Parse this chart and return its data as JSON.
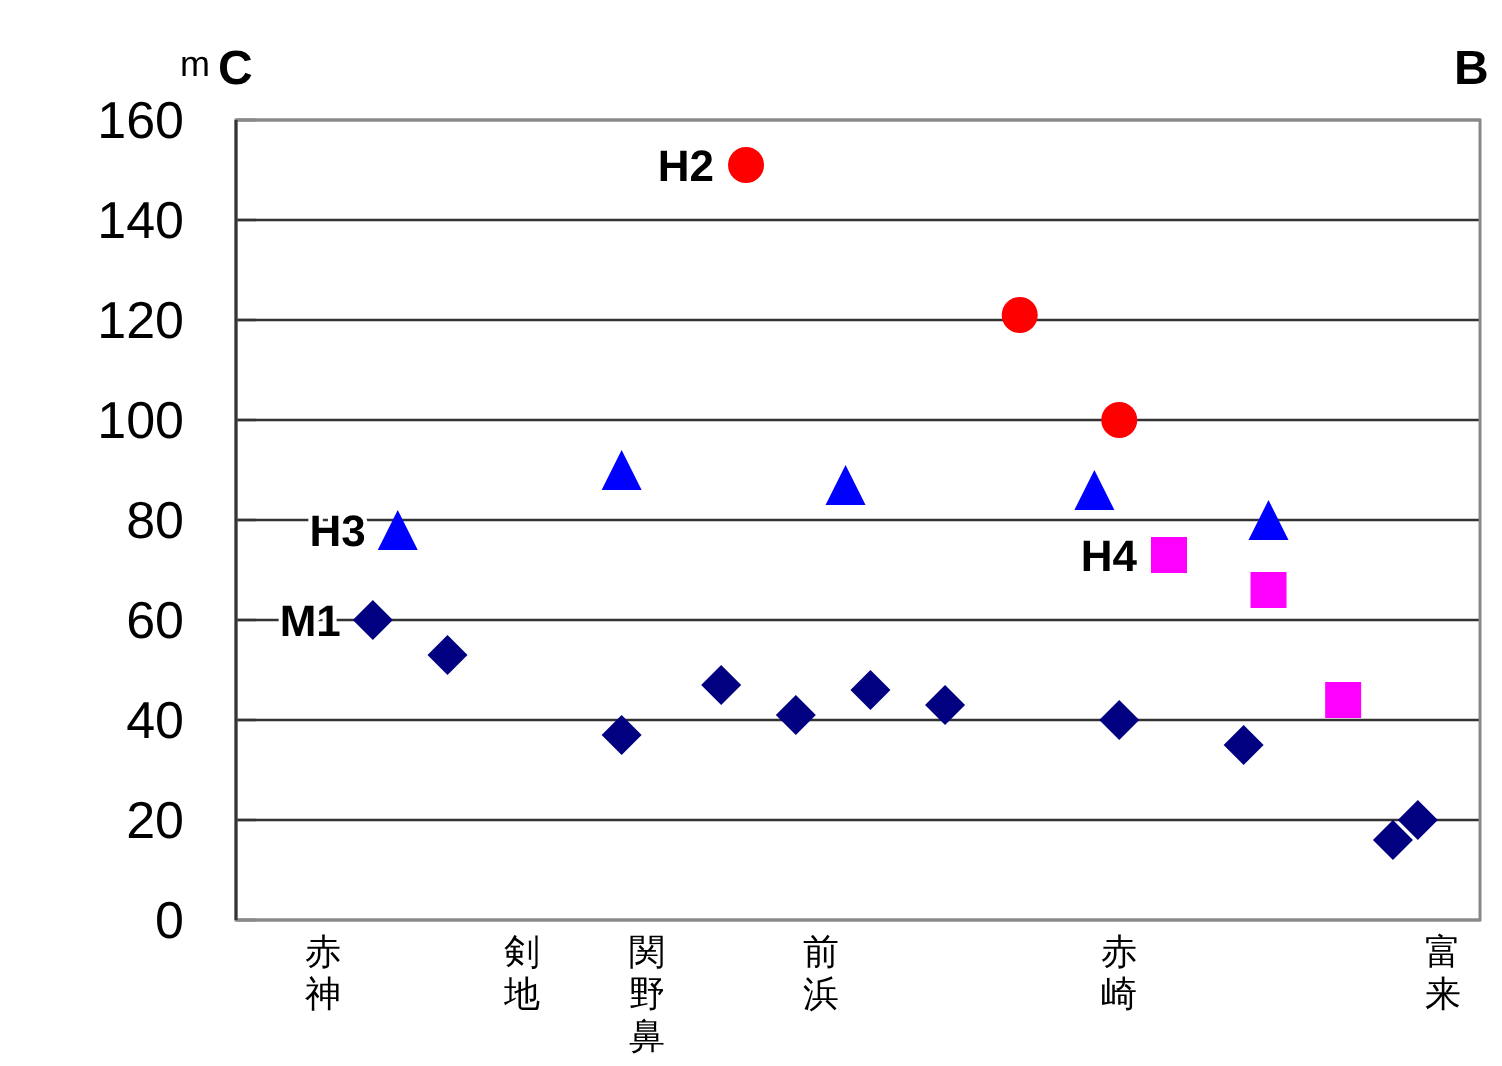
{
  "chart_data": {
    "type": "scatter",
    "ylabel": "m",
    "annotations": [
      "C",
      "B"
    ],
    "ylim": [
      0,
      160
    ],
    "yticks": [
      0,
      20,
      40,
      60,
      80,
      100,
      120,
      140,
      160
    ],
    "grid": "y",
    "categories": [
      null,
      null,
      null,
      "赤神",
      null,
      null,
      null,
      null,
      null,
      null,
      null,
      "剣地",
      null,
      null,
      null,
      null,
      "関野鼻",
      null,
      null,
      null,
      null,
      null,
      null,
      "前浜",
      null,
      null,
      null,
      null,
      null,
      null,
      null,
      null,
      null,
      null,
      null,
      "赤崎",
      null,
      null,
      null,
      null,
      null,
      null,
      null,
      null,
      null,
      null,
      null,
      null,
      "富来",
      null
    ],
    "series": [
      {
        "name": "H2",
        "color": "#ff0000",
        "marker": "circle",
        "values": [
          null,
          null,
          null,
          null,
          null,
          null,
          null,
          null,
          null,
          null,
          null,
          null,
          null,
          null,
          null,
          null,
          null,
          null,
          null,
          null,
          151,
          null,
          null,
          null,
          null,
          null,
          null,
          null,
          null,
          null,
          null,
          121,
          null,
          null,
          null,
          100,
          null,
          null,
          null,
          null,
          null,
          null,
          null,
          null,
          null,
          null,
          null,
          null,
          null,
          null
        ]
      },
      {
        "name": "H3",
        "color": "#0000ff",
        "marker": "triangle",
        "values": [
          null,
          null,
          null,
          null,
          null,
          null,
          78,
          null,
          null,
          null,
          null,
          null,
          null,
          null,
          null,
          90,
          null,
          null,
          null,
          null,
          null,
          null,
          null,
          null,
          87,
          null,
          null,
          null,
          null,
          null,
          null,
          null,
          null,
          null,
          86,
          null,
          null,
          null,
          null,
          null,
          null,
          80,
          null,
          null,
          null,
          null,
          null,
          null,
          null,
          null
        ]
      },
      {
        "name": "H4",
        "color": "#ff00ff",
        "marker": "square",
        "values": [
          null,
          null,
          null,
          null,
          null,
          null,
          null,
          null,
          null,
          null,
          null,
          null,
          null,
          null,
          null,
          null,
          null,
          null,
          null,
          null,
          null,
          null,
          null,
          null,
          null,
          null,
          null,
          null,
          null,
          null,
          null,
          null,
          null,
          null,
          null,
          null,
          null,
          73,
          null,
          null,
          null,
          66,
          null,
          null,
          44,
          null,
          null,
          null,
          null,
          null
        ]
      },
      {
        "name": "M1",
        "color": "#000080",
        "marker": "diamond",
        "values": [
          null,
          null,
          null,
          null,
          null,
          60,
          null,
          null,
          53,
          null,
          null,
          null,
          null,
          null,
          null,
          37,
          null,
          null,
          null,
          47,
          null,
          null,
          41,
          null,
          null,
          46,
          null,
          null,
          43,
          null,
          null,
          null,
          null,
          null,
          null,
          40,
          null,
          null,
          null,
          null,
          35,
          null,
          null,
          null,
          null,
          null,
          16,
          20,
          null,
          null
        ]
      }
    ]
  }
}
